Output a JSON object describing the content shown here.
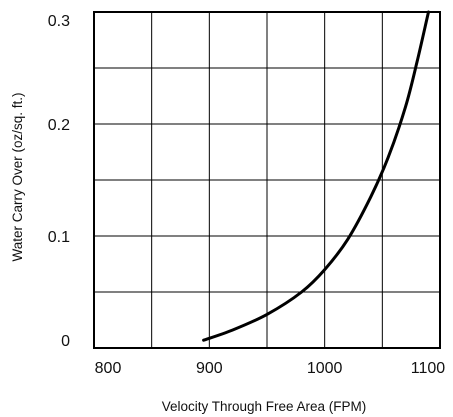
{
  "chart_data": {
    "type": "line",
    "title": "",
    "xlabel": "Velocity Through Free Area (FPM)",
    "ylabel": "Water Carry Over (oz/sq. ft.)",
    "xlim": [
      800,
      1100
    ],
    "ylim": [
      0,
      0.3
    ],
    "x_ticks": [
      "800",
      "900",
      "1000",
      "1100"
    ],
    "y_ticks": [
      "0",
      "0.1",
      "0.2",
      "0.3"
    ],
    "grid": true,
    "legend": "none",
    "series": [
      {
        "x": [
          895,
          920,
          950,
          980,
          1000,
          1020,
          1040,
          1055,
          1070,
          1080,
          1090
        ],
        "y": [
          0.007,
          0.016,
          0.03,
          0.05,
          0.07,
          0.097,
          0.135,
          0.17,
          0.215,
          0.255,
          0.3
        ]
      }
    ]
  }
}
